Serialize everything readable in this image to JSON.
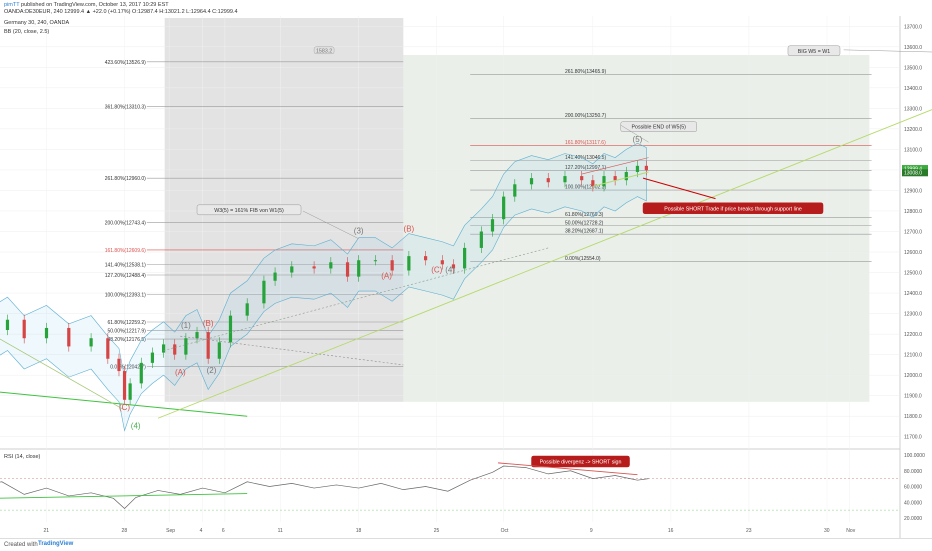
{
  "header": {
    "author": "pimTT",
    "published": "published on TradingView.com, October 13, 2017 10:29 EST",
    "symbol_line": "OANDA:DE30EUR, 240  12999.4 ▲ +22.0 (+0.17%)  O:12987.4  H:13021.2  L:12964.4  C:12999.4",
    "chart_title": "Germany 30, 240, OANDA",
    "indicator_bb": "BB (20, close, 2.5)",
    "indicator_rsi": "RSI (14, close)"
  },
  "footer": {
    "created_with": "Created with",
    "brand": "TradingView"
  },
  "chart_data": {
    "type": "line",
    "symbol": "OANDA:DE30EUR",
    "timeframe": "240",
    "current_price": 12999.4,
    "ylim": [
      11650,
      13750
    ],
    "y_ticks": [
      11700,
      11800,
      11900,
      12000,
      12100,
      12200,
      12300,
      12400,
      12500,
      12600,
      12700,
      12800,
      12900,
      13000,
      13100,
      13200,
      13300,
      13400,
      13500,
      13600,
      13700
    ],
    "y_tick_labels": [
      "11700.0",
      "11800.0",
      "11900.0",
      "12000.0",
      "12100.0",
      "12200.0",
      "12300.0",
      "12400.0",
      "12500.0",
      "12600.0",
      "12700.0",
      "12800.0",
      "12900.0",
      "13000.0",
      "13100.0",
      "13200.0",
      "13300.0",
      "13400.0",
      "13500.0",
      "13600.0",
      "13700.0"
    ],
    "price_badges": [
      "12999.4",
      "13008.0"
    ],
    "x_ticks": [
      {
        "label": "14",
        "d": -17
      },
      {
        "label": "21",
        "d": -10
      },
      {
        "label": "28",
        "d": -3
      },
      {
        "label": "Sep",
        "d": 1
      },
      {
        "label": "4",
        "d": 4
      },
      {
        "label": "6",
        "d": 6
      },
      {
        "label": "11",
        "d": 11
      },
      {
        "label": "18",
        "d": 18
      },
      {
        "label": "25",
        "d": 25
      },
      {
        "label": "Oct",
        "d": 31
      },
      {
        "label": "9",
        "d": 39
      },
      {
        "label": "16",
        "d": 46
      },
      {
        "label": "23",
        "d": 53
      },
      {
        "label": "30",
        "d": 60
      },
      {
        "label": "Nov",
        "d": 62
      },
      {
        "label": "6",
        "d": 67
      },
      {
        "label": "13",
        "d": 74
      },
      {
        "label": "20",
        "d": 81
      },
      {
        "label": "27",
        "d": 88
      },
      {
        "label": "Dec",
        "d": 92
      }
    ],
    "price_path": [
      [
        -18.5,
        12030
      ],
      [
        -17,
        12120
      ],
      [
        -15,
        12220
      ],
      [
        -13.5,
        12270
      ],
      [
        -12,
        12180
      ],
      [
        -10,
        12230
      ],
      [
        -8,
        12140
      ],
      [
        -6,
        12180
      ],
      [
        -4.5,
        12080
      ],
      [
        -3.5,
        12020
      ],
      [
        -3,
        11880
      ],
      [
        -2.5,
        11960
      ],
      [
        -1.5,
        12060
      ],
      [
        -0.5,
        12110
      ],
      [
        0.5,
        12150
      ],
      [
        1.5,
        12100
      ],
      [
        2.5,
        12180
      ],
      [
        3.5,
        12210
      ],
      [
        4.5,
        12080
      ],
      [
        5.5,
        12160
      ],
      [
        6.5,
        12290
      ],
      [
        8,
        12350
      ],
      [
        9.5,
        12460
      ],
      [
        10.5,
        12500
      ],
      [
        12,
        12530
      ],
      [
        14,
        12520
      ],
      [
        15.5,
        12550
      ],
      [
        17,
        12480
      ],
      [
        18,
        12560
      ],
      [
        19.5,
        12560
      ],
      [
        21,
        12510
      ],
      [
        22.5,
        12580
      ],
      [
        24,
        12560
      ],
      [
        25.5,
        12540
      ],
      [
        26.5,
        12520
      ],
      [
        27.5,
        12620
      ],
      [
        29,
        12700
      ],
      [
        30,
        12760
      ],
      [
        31,
        12870
      ],
      [
        32,
        12930
      ],
      [
        33.5,
        12960
      ],
      [
        35,
        12940
      ],
      [
        36.5,
        12970
      ],
      [
        38,
        12950
      ],
      [
        39,
        12920
      ],
      [
        40,
        12970
      ],
      [
        41,
        12950
      ],
      [
        42,
        12990
      ],
      [
        43,
        13020
      ],
      [
        43.8,
        12999
      ]
    ],
    "fib_left": [
      {
        "label": "423.60%(13526.9)",
        "v": 13527
      },
      {
        "label": "361.80%(13310.3)",
        "v": 13310
      },
      {
        "label": "261.80%(12960.0)",
        "v": 12960
      },
      {
        "label": "200.00%(12743.4)",
        "v": 12743
      },
      {
        "label": "161.80%(12609.6)",
        "v": 12610
      },
      {
        "label": "141.40%(12538.1)",
        "v": 12538
      },
      {
        "label": "127.20%(12488.4)",
        "v": 12488
      },
      {
        "label": "100.00%(12393.1)",
        "v": 12393
      },
      {
        "label": "61.80%(12259.2)",
        "v": 12259
      },
      {
        "label": "50.00%(12217.9)",
        "v": 12218
      },
      {
        "label": "38.20%(12176.5)",
        "v": 12176
      },
      {
        "label": "0.00%(12042.7)",
        "v": 12043
      }
    ],
    "fib_right": [
      {
        "label": "261.80%(13465.9)",
        "v": 13466
      },
      {
        "label": "200.00%(13250.7)",
        "v": 13251
      },
      {
        "label": "161.80%(13117.6)",
        "v": 13118
      },
      {
        "label": "141.40%(13046.5)",
        "v": 13046
      },
      {
        "label": "127.20%(12997.1)",
        "v": 12997
      },
      {
        "label": "100.00%(12902.3)",
        "v": 12902
      },
      {
        "label": "61.80%(12769.3)",
        "v": 12769
      },
      {
        "label": "50.00%(12728.2)",
        "v": 12728
      },
      {
        "label": "38.20%(12687.1)",
        "v": 12687
      },
      {
        "label": "0.00%(12554.0)",
        "v": 12554
      }
    ],
    "wave_labels": [
      {
        "text": "(B)",
        "d": -16,
        "v": 12350,
        "color": "red"
      },
      {
        "text": "(C)",
        "d": -3,
        "v": 11830,
        "color": "red"
      },
      {
        "text": "(4)",
        "d": -2,
        "v": 11740,
        "color": "green"
      },
      {
        "text": "(1)",
        "d": 2.5,
        "v": 12230,
        "color": "gray"
      },
      {
        "text": "(B)",
        "d": 4.5,
        "v": 12240,
        "color": "red"
      },
      {
        "text": "(A)",
        "d": 2,
        "v": 12000,
        "color": "red"
      },
      {
        "text": "(2)",
        "d": 4.8,
        "v": 12010,
        "color": "gray"
      },
      {
        "text": "(3)",
        "d": 18,
        "v": 12690,
        "color": "gray"
      },
      {
        "text": "(B)",
        "d": 22.5,
        "v": 12700,
        "color": "red"
      },
      {
        "text": "(A)",
        "d": 20.5,
        "v": 12470,
        "color": "red"
      },
      {
        "text": "(C)",
        "d": 25,
        "v": 12500,
        "color": "red"
      },
      {
        "text": "(4)",
        "d": 26.2,
        "v": 12500,
        "color": "gray"
      },
      {
        "text": "(5)",
        "d": 43,
        "v": 13135,
        "color": "gray"
      },
      {
        "text": "(5)",
        "d": 81,
        "v": 13570,
        "color": "gray"
      }
    ],
    "annotations": [
      {
        "text": "W3(5) = 161% FIB von W1(5)"
      },
      {
        "text": "Possible END of W5(5)"
      },
      {
        "text": "Possible SHORT Trade if price breaks through support line"
      },
      {
        "text": "BIG W5 = W1"
      },
      {
        "text": "Possible divergenz -> SHORT sign"
      },
      {
        "text": "1583.2"
      }
    ],
    "rsi": {
      "ylim": [
        20,
        100
      ],
      "y_ticks": [
        20,
        40,
        60,
        80,
        100
      ],
      "y_tick_labels": [
        "20.0000",
        "40.0000",
        "60.0000",
        "80.0000",
        "100.0000"
      ],
      "path": [
        [
          -18.5,
          55
        ],
        [
          -16,
          62
        ],
        [
          -14,
          66
        ],
        [
          -12,
          50
        ],
        [
          -10,
          58
        ],
        [
          -8,
          48
        ],
        [
          -6,
          52
        ],
        [
          -4,
          45
        ],
        [
          -3,
          32
        ],
        [
          -2,
          46
        ],
        [
          0,
          55
        ],
        [
          2,
          50
        ],
        [
          4,
          58
        ],
        [
          6,
          52
        ],
        [
          8,
          66
        ],
        [
          10,
          60
        ],
        [
          12,
          64
        ],
        [
          14,
          58
        ],
        [
          16,
          62
        ],
        [
          18,
          58
        ],
        [
          20,
          64
        ],
        [
          22,
          56
        ],
        [
          24,
          60
        ],
        [
          26,
          54
        ],
        [
          28,
          68
        ],
        [
          30,
          78
        ],
        [
          31,
          86
        ],
        [
          33,
          84
        ],
        [
          35,
          76
        ],
        [
          37,
          80
        ],
        [
          39,
          70
        ],
        [
          41,
          74
        ],
        [
          43,
          68
        ],
        [
          44,
          70
        ]
      ]
    }
  }
}
